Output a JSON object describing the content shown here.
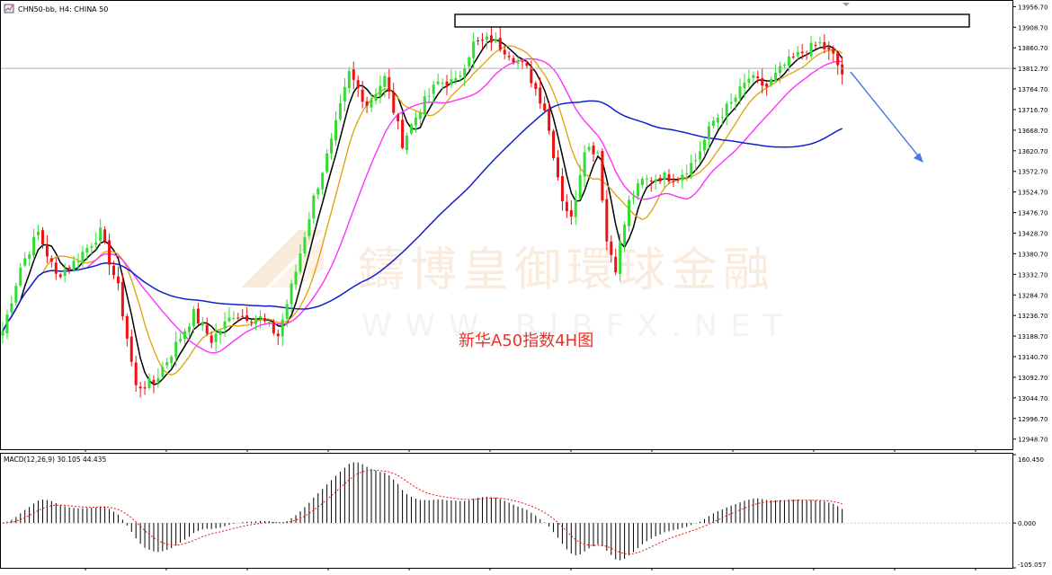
{
  "window": {
    "symbol_line": "CHN50-bb, H4:  CHINA 50",
    "icon": "chart-window-icon"
  },
  "watermark": {
    "chinese": "鑄博皇御環球金融",
    "url": "W W W . B I B F X . N E T"
  },
  "annotation": {
    "caption": "新华A50指数4H图",
    "caption_color": "#e8322a",
    "arrow_color": "#4a78e8",
    "resistance_box_color": "#000000"
  },
  "colors": {
    "bull_candle": "#33dd33",
    "bear_candle": "#ee1111",
    "ma_fast": "#000000",
    "ma_mid": "#e0a000",
    "ma_slow": "#ff30ff",
    "ma_long": "#1020cc",
    "macd_signal": "#ee1111",
    "grid": "#c8c8c8"
  },
  "chart_data": [
    {
      "type": "candlestick",
      "name": "price",
      "y_ticks": [
        13956.7,
        13908.7,
        13860.7,
        13812.7,
        13764.7,
        13716.7,
        13668.7,
        13620.7,
        13572.7,
        13524.7,
        13476.7,
        13428.7,
        13380.7,
        13332.7,
        13284.7,
        13236.7,
        13188.7,
        13140.7,
        13092.7,
        13044.7,
        12996.7,
        12948.7
      ],
      "y_tick_labels": [
        "13956.70",
        "13908.70",
        "13860.70",
        "13812.70",
        "13764.70",
        "13716.70",
        "13668.70",
        "13620.70",
        "13572.70",
        "13524.70",
        "13476.70",
        "13428.70",
        "13380.70",
        "13332.70",
        "13284.70",
        "13236.70",
        "13188.70",
        "13140.70",
        "13092.70",
        "13044.70",
        "12996.70",
        "12948.70"
      ],
      "ylim": [
        12925,
        13968
      ],
      "current_price": 13812.7,
      "resistance_zone": [
        13908,
        13935
      ],
      "moving_averages": [
        "ma_fast",
        "ma_mid",
        "ma_slow",
        "ma_long"
      ],
      "anchors": [
        [
          0,
          13200
        ],
        [
          4,
          13350
        ],
        [
          8,
          13430
        ],
        [
          12,
          13330
        ],
        [
          16,
          13360
        ],
        [
          22,
          13430
        ],
        [
          26,
          13300
        ],
        [
          30,
          13070
        ],
        [
          34,
          13080
        ],
        [
          38,
          13150
        ],
        [
          43,
          13240
        ],
        [
          47,
          13180
        ],
        [
          52,
          13240
        ],
        [
          58,
          13230
        ],
        [
          62,
          13190
        ],
        [
          66,
          13340
        ],
        [
          70,
          13510
        ],
        [
          74,
          13640
        ],
        [
          78,
          13800
        ],
        [
          82,
          13730
        ],
        [
          86,
          13790
        ],
        [
          90,
          13640
        ],
        [
          94,
          13720
        ],
        [
          98,
          13780
        ],
        [
          102,
          13780
        ],
        [
          106,
          13870
        ],
        [
          110,
          13880
        ],
        [
          114,
          13850
        ],
        [
          118,
          13810
        ],
        [
          122,
          13720
        ],
        [
          126,
          13510
        ],
        [
          128,
          13460
        ],
        [
          131,
          13630
        ],
        [
          134,
          13620
        ],
        [
          136,
          13410
        ],
        [
          138,
          13350
        ],
        [
          141,
          13500
        ],
        [
          144,
          13550
        ],
        [
          148,
          13560
        ],
        [
          152,
          13560
        ],
        [
          156,
          13600
        ],
        [
          160,
          13690
        ],
        [
          164,
          13730
        ],
        [
          168,
          13790
        ],
        [
          172,
          13770
        ],
        [
          176,
          13820
        ],
        [
          180,
          13850
        ],
        [
          184,
          13870
        ],
        [
          187,
          13840
        ],
        [
          189,
          13800
        ]
      ],
      "volatility_seed": 7
    },
    {
      "type": "histogram",
      "name": "MACD(12,26,9)",
      "legend": "MACD(12,26,9) 30.105 44.435",
      "y_tick_labels": [
        "160.450",
        "0.000",
        "-105.057"
      ],
      "ylim": [
        -105.057,
        160.45
      ],
      "series": [
        {
          "name": "MACD",
          "style": "bars"
        },
        {
          "name": "Signal",
          "style": "dotted-line"
        }
      ]
    }
  ]
}
